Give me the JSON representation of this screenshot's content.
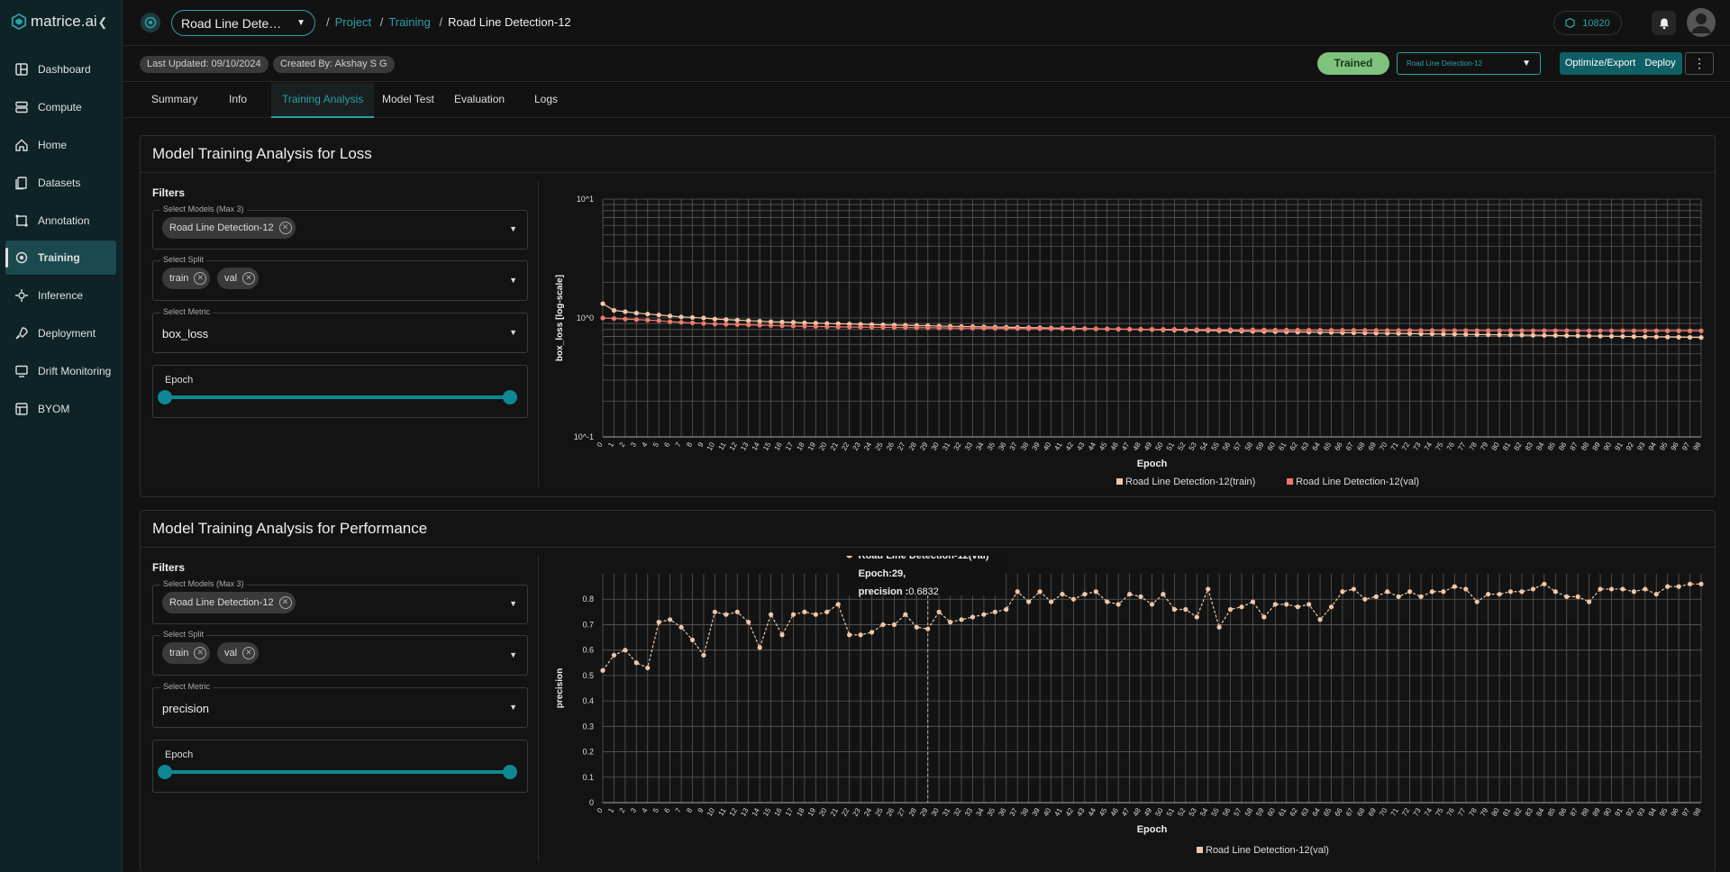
{
  "app": {
    "brand": "matrice.ai"
  },
  "sidebar": {
    "items": [
      {
        "label": "Dashboard",
        "icon": "dashboard-icon"
      },
      {
        "label": "Compute",
        "icon": "server-icon"
      },
      {
        "label": "Home",
        "icon": "home-icon"
      },
      {
        "label": "Datasets",
        "icon": "files-icon"
      },
      {
        "label": "Annotation",
        "icon": "annotation-icon"
      },
      {
        "label": "Training",
        "icon": "training-icon",
        "active": true
      },
      {
        "label": "Inference",
        "icon": "inference-icon"
      },
      {
        "label": "Deployment",
        "icon": "rocket-icon"
      },
      {
        "label": "Drift Monitoring",
        "icon": "monitor-icon"
      },
      {
        "label": "BYOM",
        "icon": "byom-icon"
      }
    ]
  },
  "topbar": {
    "project": "Road Line Detection-12",
    "breadcrumb": [
      "Project",
      "Training",
      "Road Line Detection-12"
    ],
    "credits": "10820"
  },
  "subbar": {
    "last_updated": "Last Updated: 09/10/2024",
    "created_by": "Created By: Akshay S G",
    "status": "Trained",
    "model_select": "Road Line Detection-12",
    "optimize_label": "Optimize/Export",
    "deploy_label": "Deploy"
  },
  "tabs": [
    "Summary",
    "Info",
    "Training Analysis",
    "Model Test",
    "Evaluation",
    "Logs"
  ],
  "active_tab": "Training Analysis",
  "loss_section": {
    "title": "Model Training Analysis for Loss",
    "filters_label": "Filters",
    "models_label": "Select Models (Max 3)",
    "model_chip": "Road Line Detection-12",
    "split_label": "Select Split",
    "splits": [
      "train",
      "val"
    ],
    "metric_label": "Select Metric",
    "metric": "box_loss",
    "epoch_label": "Epoch"
  },
  "perf_section": {
    "title": "Model Training Analysis for Performance",
    "filters_label": "Filters",
    "models_label": "Select Models (Max 3)",
    "model_chip": "Road Line Detection-12",
    "split_label": "Select Split",
    "splits": [
      "train",
      "val"
    ],
    "metric_label": "Select Metric",
    "metric": "precision",
    "epoch_label": "Epoch",
    "tooltip": {
      "series": "Road Line Detection-12(val)",
      "epoch": "Epoch:29,",
      "value_label": "precision :",
      "value": "0.6832"
    }
  },
  "colors": {
    "accent": "#2aa0a8",
    "train": "#f5c7a6",
    "val": "#f07a6e",
    "perf": "#f0c8a8"
  },
  "chart_data": [
    {
      "type": "line",
      "xlabel": "Epoch",
      "ylabel": "box_loss [log-scale]",
      "yscale": "log",
      "ylim": [
        0.1,
        10
      ],
      "ytick_labels": [
        "10^1",
        "10^0",
        "10^-1"
      ],
      "x": [
        0,
        1,
        2,
        3,
        4,
        5,
        6,
        7,
        8,
        9,
        10,
        11,
        12,
        13,
        14,
        15,
        16,
        17,
        18,
        19,
        20,
        21,
        22,
        23,
        24,
        25,
        26,
        27,
        28,
        29,
        30,
        31,
        32,
        33,
        34,
        35,
        36,
        37,
        38,
        39,
        40,
        41,
        42,
        43,
        44,
        45,
        46,
        47,
        48,
        49,
        50,
        51,
        52,
        53,
        54,
        55,
        56,
        57,
        58,
        59,
        60,
        61,
        62,
        63,
        64,
        65,
        66,
        67,
        68,
        69,
        70,
        71,
        72,
        73,
        74,
        75,
        76,
        77,
        78,
        79,
        80,
        81,
        82,
        83,
        84,
        85,
        86,
        87,
        88,
        89,
        90,
        91,
        92,
        93,
        94,
        95,
        96,
        97,
        98
      ],
      "series": [
        {
          "name": "Road Line Detection-12(train)",
          "values": [
            1.32,
            1.16,
            1.13,
            1.1,
            1.08,
            1.06,
            1.04,
            1.02,
            1.01,
            1.0,
            0.98,
            0.97,
            0.96,
            0.95,
            0.94,
            0.93,
            0.925,
            0.92,
            0.91,
            0.905,
            0.9,
            0.895,
            0.89,
            0.885,
            0.88,
            0.876,
            0.872,
            0.868,
            0.864,
            0.86,
            0.856,
            0.852,
            0.848,
            0.845,
            0.842,
            0.839,
            0.836,
            0.833,
            0.83,
            0.827,
            0.824,
            0.821,
            0.818,
            0.815,
            0.812,
            0.809,
            0.806,
            0.803,
            0.8,
            0.798,
            0.795,
            0.792,
            0.789,
            0.786,
            0.784,
            0.781,
            0.778,
            0.776,
            0.773,
            0.771,
            0.768,
            0.766,
            0.763,
            0.761,
            0.758,
            0.756,
            0.753,
            0.751,
            0.749,
            0.746,
            0.744,
            0.742,
            0.739,
            0.737,
            0.735,
            0.733,
            0.731,
            0.728,
            0.726,
            0.724,
            0.722,
            0.72,
            0.718,
            0.716,
            0.714,
            0.712,
            0.71,
            0.708,
            0.706,
            0.704,
            0.702,
            0.7,
            0.698,
            0.696,
            0.694,
            0.692,
            0.69,
            0.688,
            0.686
          ]
        },
        {
          "name": "Road Line Detection-12(val)",
          "values": [
            1.0,
            0.99,
            0.98,
            0.97,
            0.96,
            0.95,
            0.93,
            0.92,
            0.91,
            0.9,
            0.89,
            0.885,
            0.88,
            0.875,
            0.87,
            0.865,
            0.86,
            0.856,
            0.852,
            0.848,
            0.845,
            0.842,
            0.84,
            0.838,
            0.836,
            0.834,
            0.832,
            0.83,
            0.829,
            0.828,
            0.826,
            0.824,
            0.822,
            0.821,
            0.82,
            0.818,
            0.817,
            0.816,
            0.815,
            0.814,
            0.813,
            0.812,
            0.811,
            0.81,
            0.809,
            0.808,
            0.807,
            0.806,
            0.805,
            0.804,
            0.803,
            0.802,
            0.801,
            0.8,
            0.799,
            0.798,
            0.797,
            0.796,
            0.795,
            0.794,
            0.793,
            0.792,
            0.791,
            0.79,
            0.789,
            0.789,
            0.788,
            0.788,
            0.787,
            0.787,
            0.786,
            0.786,
            0.785,
            0.785,
            0.785,
            0.784,
            0.784,
            0.784,
            0.783,
            0.783,
            0.783,
            0.783,
            0.782,
            0.782,
            0.782,
            0.782,
            0.782,
            0.781,
            0.781,
            0.781,
            0.781,
            0.781,
            0.78,
            0.78,
            0.78,
            0.78,
            0.78,
            0.78,
            0.78
          ]
        }
      ],
      "legend": "bottom",
      "grid": true
    },
    {
      "type": "line",
      "xlabel": "Epoch",
      "ylabel": "precision",
      "ylim": [
        0,
        0.9
      ],
      "yticks": [
        0,
        0.1,
        0.2,
        0.3,
        0.4,
        0.5,
        0.6,
        0.7,
        0.8
      ],
      "x": [
        0,
        1,
        2,
        3,
        4,
        5,
        6,
        7,
        8,
        9,
        10,
        11,
        12,
        13,
        14,
        15,
        16,
        17,
        18,
        19,
        20,
        21,
        22,
        23,
        24,
        25,
        26,
        27,
        28,
        29,
        30,
        31,
        32,
        33,
        34,
        35,
        36,
        37,
        38,
        39,
        40,
        41,
        42,
        43,
        44,
        45,
        46,
        47,
        48,
        49,
        50,
        51,
        52,
        53,
        54,
        55,
        56,
        57,
        58,
        59,
        60,
        61,
        62,
        63,
        64,
        65,
        66,
        67,
        68,
        69,
        70,
        71,
        72,
        73,
        74,
        75,
        76,
        77,
        78,
        79,
        80,
        81,
        82,
        83,
        84,
        85,
        86,
        87,
        88,
        89,
        90,
        91,
        92,
        93,
        94,
        95,
        96,
        97,
        98
      ],
      "series": [
        {
          "name": "Road Line Detection-12(val)",
          "values": [
            0.52,
            0.58,
            0.6,
            0.55,
            0.53,
            0.71,
            0.72,
            0.69,
            0.64,
            0.58,
            0.75,
            0.74,
            0.75,
            0.71,
            0.61,
            0.74,
            0.66,
            0.74,
            0.75,
            0.74,
            0.75,
            0.78,
            0.66,
            0.66,
            0.67,
            0.7,
            0.7,
            0.74,
            0.69,
            0.6832,
            0.75,
            0.71,
            0.72,
            0.73,
            0.74,
            0.75,
            0.76,
            0.83,
            0.79,
            0.83,
            0.79,
            0.82,
            0.8,
            0.82,
            0.83,
            0.79,
            0.78,
            0.82,
            0.81,
            0.78,
            0.82,
            0.76,
            0.76,
            0.73,
            0.84,
            0.69,
            0.76,
            0.77,
            0.79,
            0.73,
            0.78,
            0.78,
            0.77,
            0.78,
            0.72,
            0.77,
            0.83,
            0.84,
            0.8,
            0.81,
            0.83,
            0.81,
            0.83,
            0.81,
            0.83,
            0.83,
            0.85,
            0.84,
            0.79,
            0.82,
            0.82,
            0.83,
            0.83,
            0.84,
            0.86,
            0.83,
            0.81,
            0.81,
            0.79,
            0.84,
            0.84,
            0.84,
            0.83,
            0.84,
            0.82,
            0.85,
            0.85,
            0.86,
            0.86
          ]
        }
      ],
      "legend": "bottom",
      "grid": true
    }
  ]
}
